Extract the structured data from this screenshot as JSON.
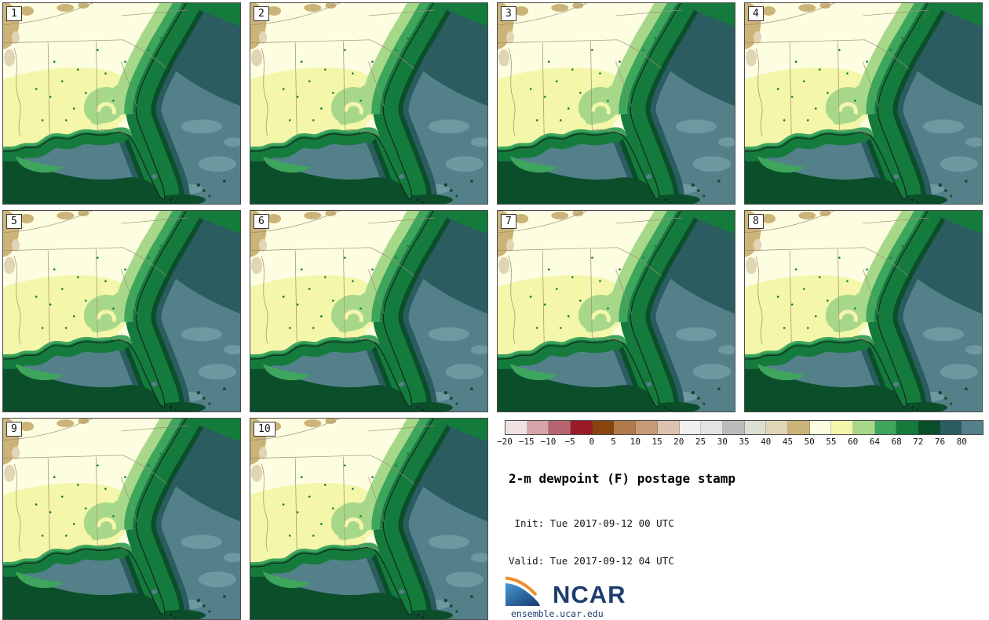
{
  "figure": {
    "title": "2-m dewpoint (F) postage stamp",
    "init_line": " Init: Tue 2017-09-12 00 UTC",
    "valid_line": "Valid: Tue 2017-09-12 04 UTC",
    "branding": {
      "logo_text": "NCAR",
      "url": "ensemble.ucar.edu",
      "navy": "#1d3e6e",
      "logo_blue_light": "#4a9ad4",
      "logo_blue_dark": "#123a6d",
      "logo_orange": "#ee8d30"
    }
  },
  "panels": [
    {
      "label": "1"
    },
    {
      "label": "2"
    },
    {
      "label": "3"
    },
    {
      "label": "4"
    },
    {
      "label": "5"
    },
    {
      "label": "6"
    },
    {
      "label": "7"
    },
    {
      "label": "8"
    },
    {
      "label": "9"
    },
    {
      "label": "10"
    }
  ],
  "colorbar": {
    "units": "F",
    "ticks": [
      "−20",
      "−15",
      "−10",
      "−5",
      "0",
      "5",
      "10",
      "15",
      "20",
      "25",
      "30",
      "35",
      "40",
      "45",
      "50",
      "55",
      "60",
      "64",
      "68",
      "72",
      "76",
      "80"
    ],
    "colors": [
      "#f2e1e1",
      "#d6a3aa",
      "#b5656f",
      "#9a1b26",
      "#8a440f",
      "#b07a4b",
      "#c69a78",
      "#dec2b1",
      "#f2f0ee",
      "#e3e3e3",
      "#bcbcbc",
      "#dcded0",
      "#e0d5b4",
      "#ccb478",
      "#fdfde1",
      "#f4f6aa",
      "#a7d88a",
      "#3ea55d",
      "#147b3d",
      "#0b4e2a",
      "#2a5c60",
      "#54808a"
    ]
  },
  "map_extra": {
    "slate_light": "#6f99a1",
    "coastline": "#14281e",
    "state_line": "#9b8f72",
    "panel_border": "#4b4b4b",
    "label_box_border": "#3a3a3a"
  }
}
